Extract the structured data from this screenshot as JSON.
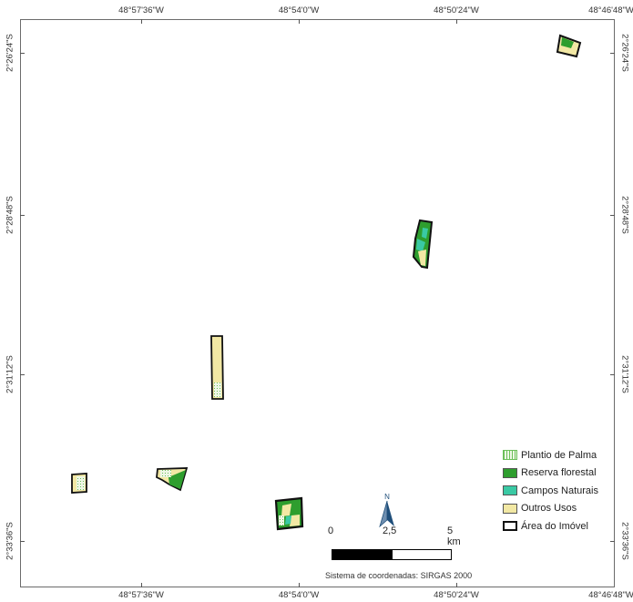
{
  "top_labels": [
    "48°57'36\"W",
    "48°54'0\"W",
    "48°50'24\"W",
    "48°46'48\"W"
  ],
  "bottom_labels": [
    "48°57'36\"W",
    "48°54'0\"W",
    "48°50'24\"W",
    "48°46'48\"W"
  ],
  "left_labels": [
    "2°26'24\"S",
    "2°28'48\"S",
    "2°31'12\"S",
    "2°33'36\"S"
  ],
  "right_labels": [
    "2°26'24\"S",
    "2°28'48\"S",
    "2°31'12\"S",
    "2°33'36\"S"
  ],
  "legend": [
    {
      "label": "Plantio de Palma",
      "color": "#c9e8b8",
      "pattern": "dotted-green"
    },
    {
      "label": "Reserva florestal",
      "color": "#2e9e2e"
    },
    {
      "label": "Campos Naturais",
      "color": "#3ac9a4"
    },
    {
      "label": "Outros Usos",
      "color": "#f2e8a4"
    },
    {
      "label": "Área do Imóvel",
      "color": "#ffffff",
      "outline": "#111111"
    }
  ],
  "scale": {
    "zero": "0",
    "mid": "2,5",
    "end": "5 km"
  },
  "north_label": "N",
  "crs_text": "Sistema de coordenadas: SIRGAS 2000",
  "colors": {
    "frame": "#6b6b6b",
    "reserva": "#2e9e2e",
    "campos": "#3ac9a4",
    "outros": "#f2e8a4",
    "palma": "#c9e8b8",
    "outline": "#111111",
    "north_arrow": "#1f4e7a"
  }
}
